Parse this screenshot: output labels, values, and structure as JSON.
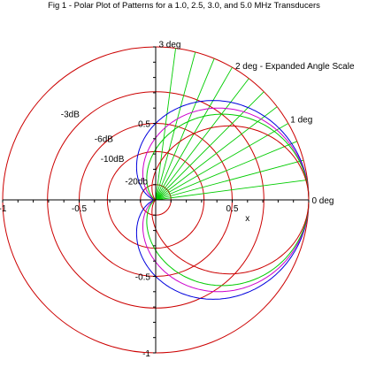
{
  "title": "Fig 1 - Polar Plot of Patterns for a 1.0, 2.5, 3.0, and 5.0 MHz Transducers",
  "chart_data": {
    "type": "line",
    "title": "Fig 1 - Polar Plot of Patterns for a 1.0, 2.5, 3.0, and 5.0 MHz Transducers",
    "xlabel": "x",
    "ylabel": "",
    "xlim": [
      -1,
      1
    ],
    "ylim": [
      -1,
      1
    ],
    "x_ticks": [
      {
        "value": -1,
        "label": "-1"
      },
      {
        "value": -0.5,
        "label": "-0.5"
      },
      {
        "value": 0.5,
        "label": "0.5"
      }
    ],
    "y_ticks": [
      {
        "value": 0.5,
        "label": "0.5"
      },
      {
        "value": -0.5,
        "label": "-0.5"
      },
      {
        "value": -1,
        "label": "-1"
      }
    ],
    "db_circles": [
      {
        "label": "-20db",
        "radius": 0.1,
        "color": "#cc0000"
      },
      {
        "label": "-10dB",
        "radius": 0.316,
        "color": "#cc0000"
      },
      {
        "label": "-6dB",
        "radius": 0.5,
        "color": "#cc0000"
      },
      {
        "label": "-3dB",
        "radius": 0.707,
        "color": "#cc0000"
      },
      {
        "label": "",
        "radius": 1.0,
        "color": "#cc0000"
      }
    ],
    "angle_scale": {
      "label": "2 deg - Expanded Angle Scale",
      "max_deg": 3,
      "step_deg": 0.25,
      "display_factor": 30,
      "color": "#00cc00",
      "labels": [
        {
          "deg": 3,
          "text": "3 deg"
        },
        {
          "deg": 2,
          "text": "2 deg - Expanded Angle Scale"
        },
        {
          "deg": 1,
          "text": "1 deg"
        },
        {
          "deg": 0,
          "text": "0 deg"
        }
      ]
    },
    "series": [
      {
        "color": "#0000dd",
        "beam_param": 1.0
      },
      {
        "color": "#cc00cc",
        "beam_param": 2.5
      },
      {
        "color": "#00cc00",
        "beam_param": 3.0
      },
      {
        "color": "#cc0000",
        "beam_param": 5.0
      }
    ]
  }
}
